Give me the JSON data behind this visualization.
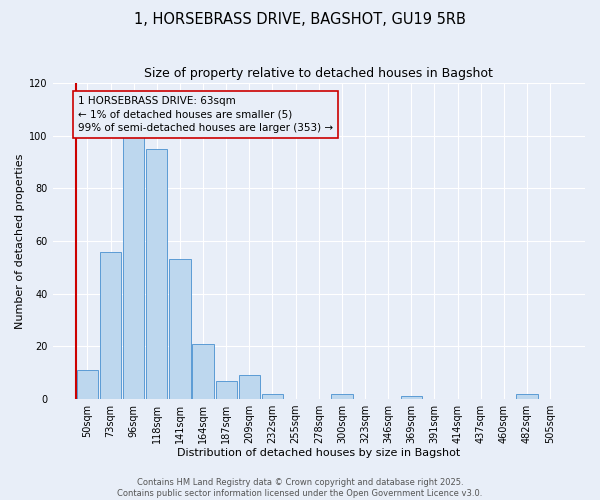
{
  "title": "1, HORSEBRASS DRIVE, BAGSHOT, GU19 5RB",
  "subtitle": "Size of property relative to detached houses in Bagshot",
  "xlabel": "Distribution of detached houses by size in Bagshot",
  "ylabel": "Number of detached properties",
  "bar_labels": [
    "50sqm",
    "73sqm",
    "96sqm",
    "118sqm",
    "141sqm",
    "164sqm",
    "187sqm",
    "209sqm",
    "232sqm",
    "255sqm",
    "278sqm",
    "300sqm",
    "323sqm",
    "346sqm",
    "369sqm",
    "391sqm",
    "414sqm",
    "437sqm",
    "460sqm",
    "482sqm",
    "505sqm"
  ],
  "bar_values": [
    11,
    56,
    100,
    95,
    53,
    21,
    7,
    9,
    2,
    0,
    0,
    2,
    0,
    0,
    1,
    0,
    0,
    0,
    0,
    2,
    0
  ],
  "bar_color": "#bdd7ee",
  "bar_edge_color": "#5b9bd5",
  "ylim": [
    0,
    120
  ],
  "yticks": [
    0,
    20,
    40,
    60,
    80,
    100,
    120
  ],
  "annotation_title": "1 HORSEBRASS DRIVE: 63sqm",
  "annotation_line1": "← 1% of detached houses are smaller (5)",
  "annotation_line2": "99% of semi-detached houses are larger (353) →",
  "footer_line1": "Contains HM Land Registry data © Crown copyright and database right 2025.",
  "footer_line2": "Contains public sector information licensed under the Open Government Licence v3.0.",
  "background_color": "#e8eef8",
  "grid_color": "#ffffff",
  "annotation_box_edge": "#cc0000",
  "property_line_color": "#cc0000",
  "title_fontsize": 10.5,
  "subtitle_fontsize": 9,
  "axis_label_fontsize": 8,
  "tick_fontsize": 7,
  "annotation_fontsize": 7.5,
  "footer_fontsize": 6
}
